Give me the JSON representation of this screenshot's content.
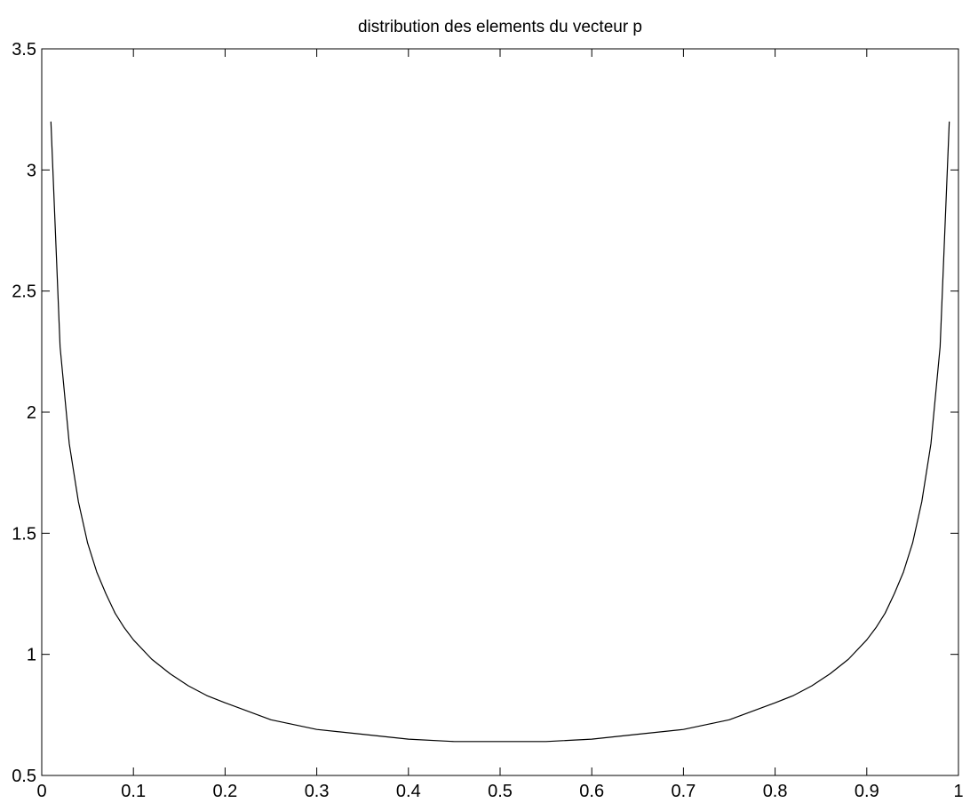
{
  "chart_data": {
    "type": "line",
    "title": "distribution des elements du vecteur p",
    "xlabel": "",
    "ylabel": "",
    "xlim": [
      0,
      1
    ],
    "ylim": [
      0.5,
      3.5
    ],
    "xticks": [
      0,
      0.1,
      0.2,
      0.3,
      0.4,
      0.5,
      0.6,
      0.7,
      0.8,
      0.9,
      1
    ],
    "xtick_labels": [
      "0",
      "0.1",
      "0.2",
      "0.3",
      "0.4",
      "0.5",
      "0.6",
      "0.7",
      "0.8",
      "0.9",
      "1"
    ],
    "yticks": [
      0.5,
      1,
      1.5,
      2,
      2.5,
      3,
      3.5
    ],
    "ytick_labels": [
      "0.5",
      "1",
      "1.5",
      "2",
      "2.5",
      "3",
      "3.5"
    ],
    "grid": false,
    "line_color": "#000000",
    "series": [
      {
        "x": [
          0.01,
          0.02,
          0.03,
          0.04,
          0.05,
          0.06,
          0.07,
          0.08,
          0.09,
          0.1,
          0.12,
          0.14,
          0.16,
          0.18,
          0.2,
          0.25,
          0.3,
          0.35,
          0.4,
          0.45,
          0.5,
          0.55,
          0.6,
          0.65,
          0.7,
          0.75,
          0.8,
          0.82,
          0.84,
          0.86,
          0.88,
          0.9,
          0.91,
          0.92,
          0.93,
          0.94,
          0.95,
          0.96,
          0.97,
          0.98,
          0.99
        ],
        "values": [
          3.2,
          2.27,
          1.87,
          1.63,
          1.46,
          1.34,
          1.25,
          1.17,
          1.11,
          1.06,
          0.98,
          0.92,
          0.87,
          0.83,
          0.8,
          0.73,
          0.69,
          0.67,
          0.65,
          0.64,
          0.64,
          0.64,
          0.65,
          0.67,
          0.69,
          0.73,
          0.8,
          0.83,
          0.87,
          0.92,
          0.98,
          1.06,
          1.11,
          1.17,
          1.25,
          1.34,
          1.46,
          1.63,
          1.87,
          2.27,
          3.2
        ]
      }
    ]
  }
}
